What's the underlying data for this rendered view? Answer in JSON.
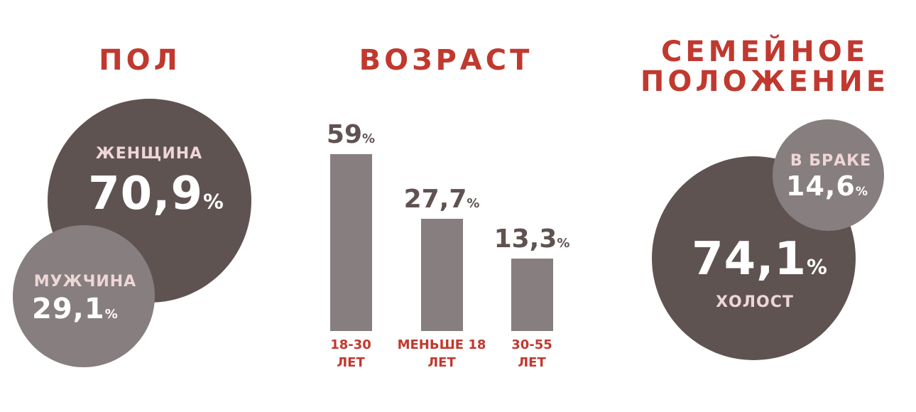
{
  "colors": {
    "accent": "#c0392f",
    "dark": "#5f5352",
    "light": "#877e7f",
    "label": "#efd6d6"
  },
  "gender": {
    "title": "ПОЛ",
    "female": {
      "label": "ЖЕНЩИНА",
      "value": "70,9",
      "unit": "%"
    },
    "male": {
      "label": "МУЖЧИНА",
      "value": "29,1",
      "unit": "%"
    }
  },
  "marital": {
    "title_line1": "СЕМЕЙНОЕ",
    "title_line2": "ПОЛОЖЕНИЕ",
    "married": {
      "label": "В БРАКЕ",
      "value": "14,6",
      "unit": "%"
    },
    "single": {
      "label": "ХОЛОСТ",
      "value": "74,1",
      "unit": "%"
    }
  },
  "chart_data": [
    {
      "type": "pie",
      "title": "ПОЛ",
      "categories": [
        "ЖЕНЩИНА",
        "МУЖЧИНА"
      ],
      "values": [
        70.9,
        29.1
      ],
      "unit": "%"
    },
    {
      "type": "bar",
      "title": "ВОЗРАСТ",
      "categories": [
        "18-30 ЛЕТ",
        "МЕНЬШЕ 18 ЛЕТ",
        "30-55 ЛЕТ"
      ],
      "values": [
        59,
        27.7,
        13.3
      ],
      "value_labels": [
        "59",
        "27,7",
        "13,3"
      ],
      "unit": "%",
      "grid": false
    },
    {
      "type": "pie",
      "title": "СЕМЕЙНОЕ ПОЛОЖЕНИЕ",
      "categories": [
        "ХОЛОСТ",
        "В БРАКЕ"
      ],
      "values": [
        74.1,
        14.6
      ],
      "unit": "%"
    }
  ]
}
